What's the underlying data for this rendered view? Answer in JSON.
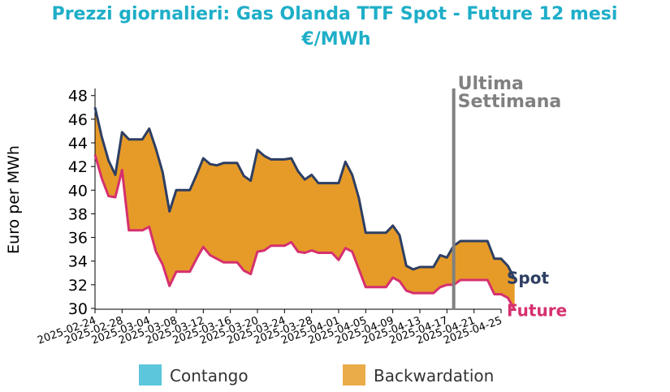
{
  "chart_data": {
    "type": "area",
    "title_line1": "Prezzi giornalieri: Gas Olanda TTF Spot - Future 12 mesi",
    "title_line2": "€/MWh",
    "ylabel": "Euro per MWh",
    "xlabel": "",
    "ylim": [
      30,
      48.6
    ],
    "xlim": [
      "2025-02-24",
      "2025-04-25"
    ],
    "yticks": [
      30,
      32,
      34,
      36,
      38,
      40,
      42,
      44,
      46,
      48
    ],
    "xticks": [
      "2025-02-24",
      "2025-02-28",
      "2025-03-04",
      "2025-03-08",
      "2025-03-12",
      "2025-03-16",
      "2025-03-20",
      "2025-03-24",
      "2025-03-28",
      "2025-04-01",
      "2025-04-05",
      "2025-04-09",
      "2025-04-13",
      "2025-04-17",
      "2025-04-21",
      "2025-04-25"
    ],
    "colors": {
      "title": "#1eaec8",
      "spot": "#2e3f63",
      "future": "#d6306f",
      "backwardation": "#e5961c",
      "contango": "#5bc6dc",
      "vline": "#808080",
      "annotation": "#808080"
    },
    "series": [
      {
        "name": "Spot",
        "points": [
          [
            "2025-02-24",
            47.0
          ],
          [
            "2025-02-25",
            44.5
          ],
          [
            "2025-02-26",
            42.5
          ],
          [
            "2025-02-27",
            41.3
          ],
          [
            "2025-02-28",
            44.9
          ],
          [
            "2025-03-01",
            44.3
          ],
          [
            "2025-03-02",
            44.3
          ],
          [
            "2025-03-03",
            44.3
          ],
          [
            "2025-03-04",
            45.2
          ],
          [
            "2025-03-05",
            43.5
          ],
          [
            "2025-03-06",
            41.5
          ],
          [
            "2025-03-07",
            38.2
          ],
          [
            "2025-03-08",
            40.0
          ],
          [
            "2025-03-09",
            40.0
          ],
          [
            "2025-03-10",
            40.0
          ],
          [
            "2025-03-11",
            41.3
          ],
          [
            "2025-03-12",
            42.7
          ],
          [
            "2025-03-13",
            42.2
          ],
          [
            "2025-03-14",
            42.1
          ],
          [
            "2025-03-15",
            42.3
          ],
          [
            "2025-03-16",
            42.3
          ],
          [
            "2025-03-17",
            42.3
          ],
          [
            "2025-03-18",
            41.2
          ],
          [
            "2025-03-19",
            40.8
          ],
          [
            "2025-03-20",
            43.4
          ],
          [
            "2025-03-21",
            42.9
          ],
          [
            "2025-03-22",
            42.6
          ],
          [
            "2025-03-23",
            42.6
          ],
          [
            "2025-03-24",
            42.6
          ],
          [
            "2025-03-25",
            42.7
          ],
          [
            "2025-03-26",
            41.6
          ],
          [
            "2025-03-27",
            40.9
          ],
          [
            "2025-03-28",
            41.3
          ],
          [
            "2025-03-29",
            40.6
          ],
          [
            "2025-03-30",
            40.6
          ],
          [
            "2025-03-31",
            40.6
          ],
          [
            "2025-04-01",
            40.6
          ],
          [
            "2025-04-02",
            42.4
          ],
          [
            "2025-04-03",
            41.3
          ],
          [
            "2025-04-04",
            39.3
          ],
          [
            "2025-04-05",
            36.4
          ],
          [
            "2025-04-06",
            36.4
          ],
          [
            "2025-04-07",
            36.4
          ],
          [
            "2025-04-08",
            36.4
          ],
          [
            "2025-04-09",
            37.0
          ],
          [
            "2025-04-10",
            36.2
          ],
          [
            "2025-04-11",
            33.6
          ],
          [
            "2025-04-12",
            33.3
          ],
          [
            "2025-04-13",
            33.5
          ],
          [
            "2025-04-14",
            33.5
          ],
          [
            "2025-04-15",
            33.5
          ],
          [
            "2025-04-16",
            34.5
          ],
          [
            "2025-04-17",
            34.3
          ],
          [
            "2025-04-18",
            35.3
          ],
          [
            "2025-04-19",
            35.7
          ],
          [
            "2025-04-20",
            35.7
          ],
          [
            "2025-04-21",
            35.7
          ],
          [
            "2025-04-22",
            35.7
          ],
          [
            "2025-04-23",
            35.7
          ],
          [
            "2025-04-24",
            34.2
          ],
          [
            "2025-04-25",
            34.2
          ],
          [
            "2025-04-26",
            33.6
          ],
          [
            "2025-04-27",
            32.5
          ]
        ]
      },
      {
        "name": "Future",
        "points": [
          [
            "2025-02-24",
            43.0
          ],
          [
            "2025-02-25",
            41.0
          ],
          [
            "2025-02-26",
            39.5
          ],
          [
            "2025-02-27",
            39.4
          ],
          [
            "2025-02-28",
            41.7
          ],
          [
            "2025-03-01",
            36.6
          ],
          [
            "2025-03-02",
            36.6
          ],
          [
            "2025-03-03",
            36.6
          ],
          [
            "2025-03-04",
            36.9
          ],
          [
            "2025-03-05",
            34.8
          ],
          [
            "2025-03-06",
            33.7
          ],
          [
            "2025-03-07",
            31.9
          ],
          [
            "2025-03-08",
            33.1
          ],
          [
            "2025-03-09",
            33.1
          ],
          [
            "2025-03-10",
            33.1
          ],
          [
            "2025-03-11",
            34.2
          ],
          [
            "2025-03-12",
            35.2
          ],
          [
            "2025-03-13",
            34.5
          ],
          [
            "2025-03-14",
            34.2
          ],
          [
            "2025-03-15",
            33.9
          ],
          [
            "2025-03-16",
            33.9
          ],
          [
            "2025-03-17",
            33.9
          ],
          [
            "2025-03-18",
            33.2
          ],
          [
            "2025-03-19",
            32.9
          ],
          [
            "2025-03-20",
            34.8
          ],
          [
            "2025-03-21",
            34.9
          ],
          [
            "2025-03-22",
            35.3
          ],
          [
            "2025-03-23",
            35.3
          ],
          [
            "2025-03-24",
            35.3
          ],
          [
            "2025-03-25",
            35.6
          ],
          [
            "2025-03-26",
            34.8
          ],
          [
            "2025-03-27",
            34.7
          ],
          [
            "2025-03-28",
            34.9
          ],
          [
            "2025-03-29",
            34.7
          ],
          [
            "2025-03-30",
            34.7
          ],
          [
            "2025-03-31",
            34.7
          ],
          [
            "2025-04-01",
            34.1
          ],
          [
            "2025-04-02",
            35.1
          ],
          [
            "2025-04-03",
            34.8
          ],
          [
            "2025-04-04",
            33.3
          ],
          [
            "2025-04-05",
            31.8
          ],
          [
            "2025-04-06",
            31.8
          ],
          [
            "2025-04-07",
            31.8
          ],
          [
            "2025-04-08",
            31.8
          ],
          [
            "2025-04-09",
            32.6
          ],
          [
            "2025-04-10",
            32.3
          ],
          [
            "2025-04-11",
            31.5
          ],
          [
            "2025-04-12",
            31.3
          ],
          [
            "2025-04-13",
            31.3
          ],
          [
            "2025-04-14",
            31.3
          ],
          [
            "2025-04-15",
            31.3
          ],
          [
            "2025-04-16",
            31.8
          ],
          [
            "2025-04-17",
            32.0
          ],
          [
            "2025-04-18",
            32.0
          ],
          [
            "2025-04-19",
            32.4
          ],
          [
            "2025-04-20",
            32.4
          ],
          [
            "2025-04-21",
            32.4
          ],
          [
            "2025-04-22",
            32.4
          ],
          [
            "2025-04-23",
            32.4
          ],
          [
            "2025-04-24",
            31.2
          ],
          [
            "2025-04-25",
            31.2
          ],
          [
            "2025-04-26",
            30.9
          ],
          [
            "2025-04-27",
            29.9
          ]
        ]
      }
    ],
    "annotation": {
      "line1": "Ultima",
      "line2": "Settimana",
      "x": "2025-04-18"
    },
    "legend": {
      "placement": "bottom",
      "items": [
        {
          "label": "Contango",
          "color": "#5bc6dc"
        },
        {
          "label": "Backwardation",
          "color": "#e5961c"
        }
      ]
    }
  }
}
